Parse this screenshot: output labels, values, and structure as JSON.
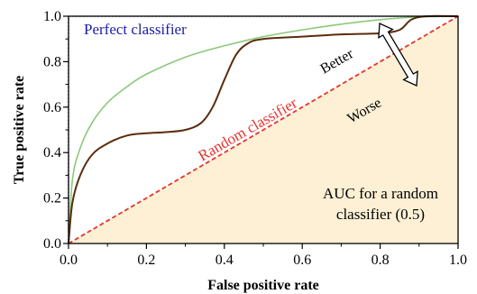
{
  "chart_data": {
    "type": "line",
    "xlabel": "False positive rate",
    "ylabel": "True positive rate",
    "xlim": [
      0,
      1
    ],
    "ylim": [
      0,
      1
    ],
    "xticks": [
      "0.0",
      "0.2",
      "0.4",
      "0.6",
      "0.8",
      "1.0"
    ],
    "yticks": [
      "0.0",
      "0.2",
      "0.4",
      "0.6",
      "0.8",
      "1.0"
    ],
    "grid": false,
    "series": [
      {
        "name": "Perfect classifier",
        "color": "#1c1ca8",
        "style": "dotted",
        "x": [
          0,
          0,
          1
        ],
        "y": [
          0,
          1,
          1
        ]
      },
      {
        "name": "Random classifier",
        "color": "#e8332a",
        "style": "dashed",
        "x": [
          0,
          1
        ],
        "y": [
          0,
          1
        ]
      },
      {
        "name": "",
        "color": "#8cc97a",
        "style": "solid",
        "x": [
          0,
          0.01,
          0.03,
          0.06,
          0.1,
          0.15,
          0.2,
          0.3,
          0.4,
          0.5,
          0.6,
          0.7,
          0.8,
          0.9,
          1.0
        ],
        "y": [
          0,
          0.28,
          0.42,
          0.53,
          0.62,
          0.69,
          0.745,
          0.82,
          0.87,
          0.91,
          0.94,
          0.965,
          0.985,
          0.997,
          1.0
        ]
      },
      {
        "name": "",
        "color": "#5a2d0c",
        "style": "solid",
        "x": [
          0,
          0.01,
          0.03,
          0.06,
          0.1,
          0.15,
          0.2,
          0.25,
          0.3,
          0.34,
          0.37,
          0.4,
          0.43,
          0.46,
          0.5,
          0.6,
          0.7,
          0.8,
          0.85,
          0.88,
          0.92,
          1.0
        ],
        "y": [
          0,
          0.18,
          0.3,
          0.39,
          0.44,
          0.475,
          0.485,
          0.49,
          0.5,
          0.53,
          0.6,
          0.72,
          0.83,
          0.88,
          0.9,
          0.91,
          0.92,
          0.925,
          0.94,
          0.985,
          1.0,
          1.0
        ]
      }
    ],
    "fill_under_random": {
      "color": "#fdf0d5",
      "label_line1": "AUC for a random",
      "label_line2": "classifier (0.5)"
    },
    "annotations": {
      "perfect": "Perfect classifier",
      "random": "Random classifier",
      "better": "Better",
      "worse": "Worse"
    }
  }
}
